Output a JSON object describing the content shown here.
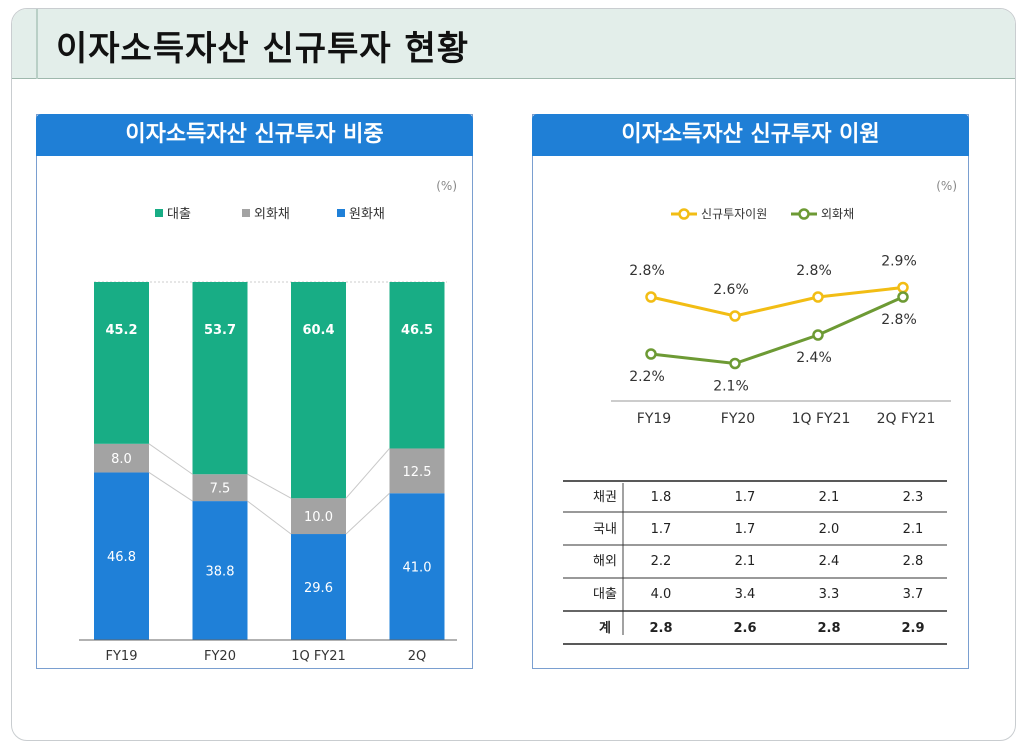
{
  "page_title": "이자소득자산 신규투자 현황",
  "left_panel": {
    "title": "이자소득자산 신규투자 비중",
    "unit": "(%)"
  },
  "right_panel": {
    "title": "이자소득자산 신규투자 이원",
    "unit": "(%)"
  },
  "chart_data": [
    {
      "type": "bar",
      "stacked": true,
      "title": "이자소득자산 신규투자 비중",
      "unit": "(%)",
      "categories": [
        "FY19",
        "FY20",
        "1Q FY21",
        "2Q"
      ],
      "series": [
        {
          "name": "원화채",
          "color": "#1f80d8",
          "values": [
            46.8,
            38.8,
            29.6,
            41.0
          ],
          "labels": [
            "46.8",
            "38.8",
            "29.6",
            "41.0"
          ]
        },
        {
          "name": "외화채",
          "color": "#a3a3a3",
          "values": [
            8.0,
            7.5,
            10.0,
            12.5
          ],
          "labels": [
            "8.0",
            "7.5",
            "10.0",
            "12.5"
          ]
        },
        {
          "name": "대출",
          "color": "#18ad85",
          "values": [
            45.2,
            53.7,
            60.4,
            46.5
          ],
          "labels": [
            "45.2",
            "53.7",
            "60.4",
            "46.5"
          ]
        }
      ],
      "legend_order": [
        "대출",
        "외화채",
        "원화채"
      ],
      "ylim": [
        0,
        100
      ],
      "legend": "top"
    },
    {
      "type": "line",
      "title": "이자소득자산 신규투자 이원",
      "unit": "(%)",
      "categories": [
        "FY19",
        "FY20",
        "1Q FY21",
        "2Q FY21"
      ],
      "series": [
        {
          "name": "신규투자이원",
          "color": "#f2bd14",
          "values": [
            2.8,
            2.6,
            2.8,
            2.9
          ],
          "labels": [
            "2.8%",
            "2.6%",
            "2.8%",
            "2.9%"
          ]
        },
        {
          "name": "외화채",
          "color": "#6d9a34",
          "values": [
            2.2,
            2.1,
            2.4,
            2.8
          ],
          "labels": [
            "2.2%",
            "2.1%",
            "2.4%",
            "2.8%"
          ]
        }
      ],
      "legend": "top"
    },
    {
      "type": "table",
      "rows": [
        {
          "label": "채권",
          "values": [
            "1.8",
            "1.7",
            "2.1",
            "2.3"
          ]
        },
        {
          "label": "국내",
          "values": [
            "1.7",
            "1.7",
            "2.0",
            "2.1"
          ]
        },
        {
          "label": "해외",
          "values": [
            "2.2",
            "2.1",
            "2.4",
            "2.8"
          ]
        },
        {
          "label": "대출",
          "values": [
            "4.0",
            "3.4",
            "3.3",
            "3.7"
          ]
        },
        {
          "label": "계",
          "values": [
            "2.8",
            "2.6",
            "2.8",
            "2.9"
          ]
        }
      ]
    }
  ]
}
